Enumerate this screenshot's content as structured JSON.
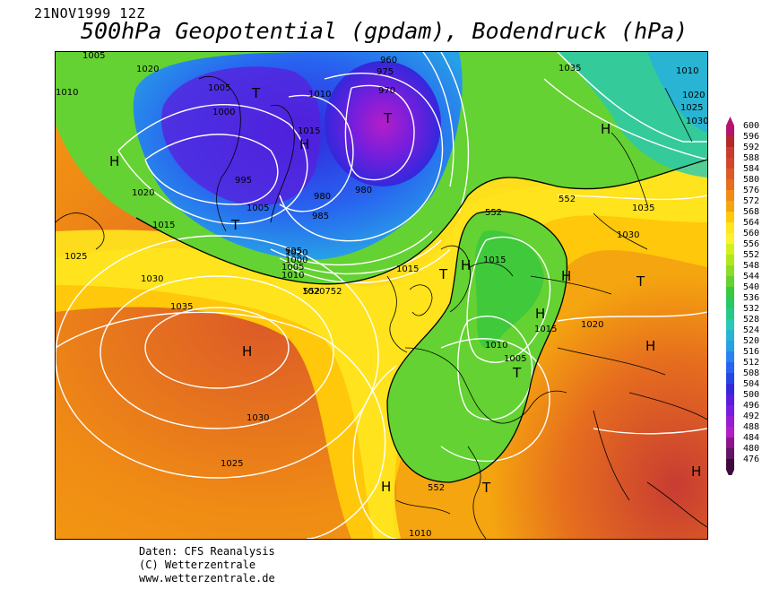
{
  "header": {
    "date": "21NOV1999 12Z",
    "title": "500hPa Geopotential (gpdam), Bodendruck (hPa)"
  },
  "footer": {
    "line1": "Daten: CFS Reanalysis",
    "line2": "(C) Wetterzentrale",
    "line3": "www.wetterzentrale.de"
  },
  "legend": {
    "values": [
      "600",
      "596",
      "592",
      "588",
      "584",
      "580",
      "576",
      "572",
      "568",
      "564",
      "560",
      "556",
      "552",
      "548",
      "544",
      "540",
      "536",
      "532",
      "528",
      "524",
      "520",
      "516",
      "512",
      "508",
      "504",
      "500",
      "496",
      "492",
      "488",
      "484",
      "480",
      "476"
    ],
    "colors": [
      "#b4146e",
      "#b42828",
      "#c83c32",
      "#d2462d",
      "#dc5a28",
      "#e66e1e",
      "#f08c14",
      "#f5a50f",
      "#ffc80a",
      "#ffe61e",
      "#fff032",
      "#d2f01e",
      "#b4e61e",
      "#8cdc28",
      "#64d232",
      "#3cc83c",
      "#28c864",
      "#28c88c",
      "#28c8b4",
      "#28b4d2",
      "#28a0e6",
      "#2882f0",
      "#2864f0",
      "#2846e6",
      "#3228dc",
      "#5a1edc",
      "#781edc",
      "#961ed2",
      "#b41ec8",
      "#8c148c",
      "#641464",
      "#3c0a3c"
    ]
  },
  "map_labels": {
    "isobars": [
      "1005",
      "1020",
      "1010",
      "1005",
      "1000",
      "995",
      "1005",
      "1020",
      "1015",
      "1025",
      "1030",
      "1035",
      "1030",
      "1025",
      "1020",
      "1020752",
      "1015",
      "995",
      "1000",
      "1005",
      "1010",
      "985",
      "975",
      "980",
      "970",
      "960",
      "1010",
      "1015",
      "980",
      "1035",
      "1010",
      "1020",
      "1025",
      "1030",
      "1035",
      "1030",
      "1015",
      "1020",
      "1015",
      "1010",
      "1005",
      "1010"
    ],
    "contours": [
      "552",
      "552",
      "552",
      "552"
    ],
    "pressure_centers": [
      "H",
      "T",
      "T",
      "H",
      "T",
      "H",
      "H",
      "H",
      "H",
      "T",
      "H",
      "T",
      "H",
      "T",
      "H",
      "H",
      "T"
    ]
  }
}
